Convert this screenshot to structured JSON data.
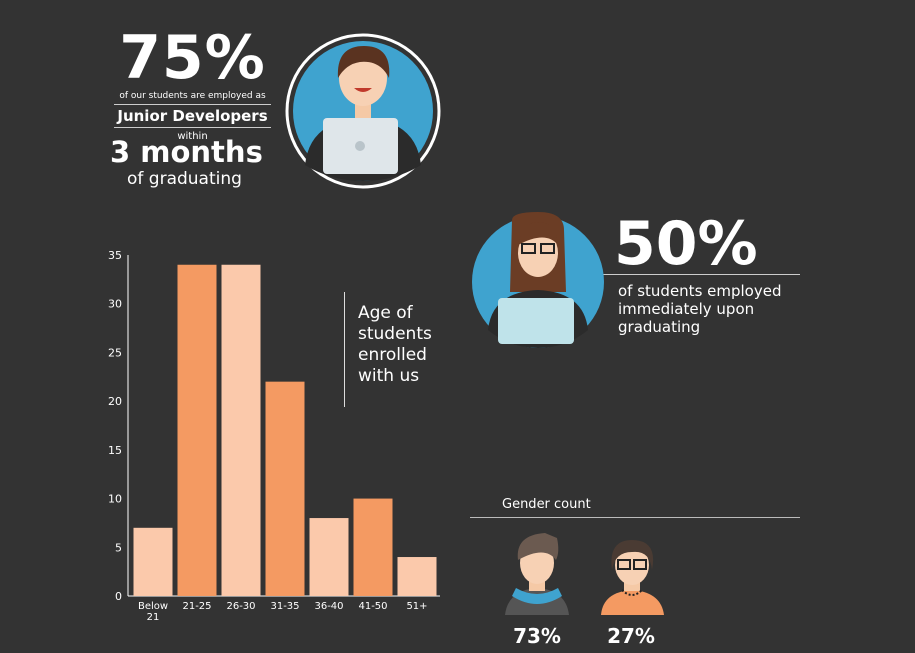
{
  "chart_data": {
    "type": "bar",
    "categories": [
      "Below 21",
      "21-25",
      "26-30",
      "31-35",
      "36-40",
      "41-50",
      "51+"
    ],
    "values": [
      7,
      34,
      34,
      22,
      8,
      10,
      4
    ],
    "colors": [
      "#fbc9ab",
      "#f49a62",
      "#fbc9ab",
      "#f49a62",
      "#fbc9ab",
      "#f49a62",
      "#fbc9ab"
    ],
    "ylim": [
      0,
      35
    ],
    "yticks": [
      0,
      5,
      10,
      15,
      20,
      25,
      30,
      35
    ],
    "grid": false,
    "annotation": "Age of students enrolled with us"
  },
  "top_stat": {
    "value": "75%",
    "line1": "of our students are employed as",
    "role": "Junior Developers",
    "line2": "within",
    "period": "3 months",
    "line3": "of graduating"
  },
  "second_stat": {
    "value": "50%",
    "text": "of students employed immediately upon graduating"
  },
  "gender": {
    "title": "Gender count",
    "male": "73%",
    "female": "27%"
  }
}
